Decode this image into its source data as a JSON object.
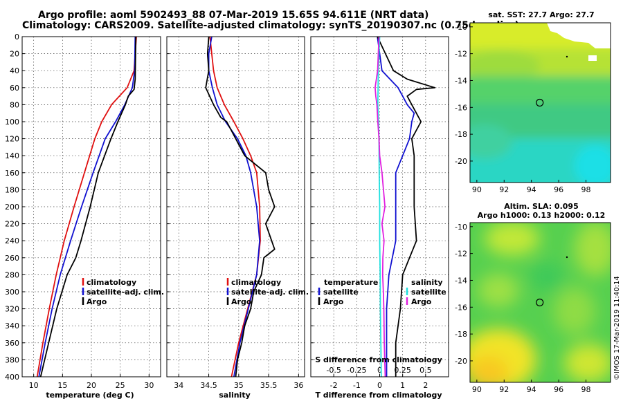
{
  "title": {
    "line1": "Argo profile: aoml 5902493_88 07-Mar-2019 15.65S 94.611E (NRT data)",
    "line2": "Climatology: CARS2009. Satellite-adjusted climatology: synTS_20190307.nc (0.75d earlier)"
  },
  "colors": {
    "climatology": "#e01010",
    "satellite": "#1010d0",
    "argo": "#000000",
    "satellite_salinity": "#20e0e0",
    "argo_salinity": "#e020e0"
  },
  "chart_data": [
    {
      "id": "temperature",
      "type": "line",
      "xlabel": "temperature (deg C)",
      "ylabel": "",
      "xlim": [
        8,
        32
      ],
      "ylim": [
        400,
        0
      ],
      "xticks": [
        10,
        15,
        20,
        25,
        30
      ],
      "yticks": [
        0,
        20,
        40,
        60,
        80,
        100,
        120,
        140,
        160,
        180,
        200,
        220,
        240,
        260,
        280,
        300,
        320,
        340,
        360,
        380,
        400
      ],
      "grid": true,
      "legend": [
        "climatology",
        "satellite-adj. clim.",
        "Argo"
      ],
      "legend_position": "lower-right",
      "series": [
        {
          "name": "climatology",
          "color": "#e01010",
          "depth": [
            0,
            40,
            60,
            80,
            100,
            120,
            160,
            200,
            240,
            280,
            320,
            360,
            400
          ],
          "values": [
            27.8,
            27.4,
            26.2,
            23.5,
            21.8,
            20.6,
            18.8,
            17.0,
            15.3,
            13.9,
            12.7,
            11.6,
            10.6
          ]
        },
        {
          "name": "satellite-adj. clim.",
          "color": "#1010d0",
          "depth": [
            0,
            40,
            60,
            80,
            100,
            120,
            160,
            200,
            240,
            280,
            320,
            360,
            400
          ],
          "values": [
            27.6,
            27.5,
            27.1,
            25.8,
            24.2,
            22.4,
            20.3,
            18.3,
            16.4,
            14.6,
            13.2,
            12.0,
            10.9
          ]
        },
        {
          "name": "Argo",
          "color": "#000000",
          "depth": [
            0,
            50,
            62,
            70,
            80,
            100,
            120,
            160,
            200,
            240,
            260,
            280,
            320,
            360,
            400
          ],
          "values": [
            27.7,
            27.6,
            27.4,
            26.4,
            25.9,
            24.6,
            23.4,
            21.2,
            19.8,
            18.2,
            17.3,
            15.8,
            14.0,
            12.6,
            11.2
          ]
        }
      ]
    },
    {
      "id": "salinity",
      "type": "line",
      "xlabel": "salinity",
      "xlim": [
        33.8,
        36.1
      ],
      "ylim": [
        400,
        0
      ],
      "xticks": [
        34,
        34.5,
        35,
        35.5,
        36
      ],
      "grid": true,
      "legend": [
        "climatology",
        "satellite-adj. clim.",
        "Argo"
      ],
      "legend_position": "lower-right",
      "series": [
        {
          "name": "climatology",
          "color": "#e01010",
          "depth": [
            0,
            20,
            40,
            60,
            80,
            100,
            120,
            140,
            160,
            200,
            240,
            280,
            320,
            360,
            400
          ],
          "values": [
            34.52,
            34.55,
            34.58,
            34.64,
            34.76,
            34.92,
            35.07,
            35.2,
            35.3,
            35.35,
            35.36,
            35.3,
            35.15,
            35.0,
            34.88
          ]
        },
        {
          "name": "satellite-adj. clim.",
          "color": "#1010d0",
          "depth": [
            0,
            20,
            40,
            60,
            80,
            100,
            120,
            140,
            160,
            200,
            240,
            280,
            320,
            360,
            400
          ],
          "values": [
            34.55,
            34.5,
            34.5,
            34.56,
            34.64,
            34.78,
            34.98,
            35.12,
            35.2,
            35.3,
            35.35,
            35.3,
            35.16,
            35.02,
            34.92
          ]
        },
        {
          "name": "Argo",
          "color": "#000000",
          "depth": [
            0,
            20,
            40,
            60,
            80,
            95,
            100,
            120,
            140,
            160,
            180,
            200,
            220,
            240,
            250,
            260,
            280,
            300,
            320,
            340,
            360,
            380,
            400
          ],
          "values": [
            34.5,
            34.48,
            34.5,
            34.45,
            34.58,
            34.7,
            34.8,
            34.95,
            35.1,
            35.45,
            35.5,
            35.6,
            35.45,
            35.55,
            35.6,
            35.42,
            35.38,
            35.25,
            35.2,
            35.1,
            35.05,
            34.98,
            34.95
          ]
        }
      ]
    },
    {
      "id": "difference",
      "type": "line",
      "xlabel": "T difference from climatology",
      "xlabel2": "S difference from climatology",
      "xlim": [
        -3,
        3
      ],
      "ylim": [
        400,
        0
      ],
      "xticks": [
        -2,
        -1,
        0,
        1,
        2
      ],
      "xticks2": [
        "-0.5",
        "-0.25",
        "0",
        "0.25",
        "0.5"
      ],
      "grid": true,
      "legend_temperature_title": "temperature",
      "legend_temperature": [
        "satellite",
        "Argo"
      ],
      "legend_salinity_title": "salinity",
      "legend_salinity": [
        "satellite",
        "Argo"
      ],
      "series": [
        {
          "name": "temperature satellite",
          "color": "#1010d0",
          "depth": [
            0,
            40,
            60,
            70,
            80,
            90,
            100,
            120,
            140,
            160,
            200,
            240,
            280,
            320,
            360,
            400
          ],
          "values": [
            -0.1,
            0.1,
            0.8,
            1.0,
            1.2,
            1.5,
            1.4,
            1.3,
            1.0,
            0.7,
            0.7,
            0.7,
            0.4,
            0.3,
            0.3,
            0.3
          ]
        },
        {
          "name": "temperature Argo",
          "color": "#000000",
          "depth": [
            0,
            40,
            50,
            60,
            62,
            70,
            80,
            100,
            120,
            140,
            160,
            200,
            240,
            260,
            280,
            320,
            360,
            400
          ],
          "values": [
            -0.1,
            0.6,
            1.2,
            2.4,
            1.6,
            1.2,
            1.4,
            1.8,
            1.4,
            1.5,
            1.5,
            1.5,
            1.6,
            1.3,
            1.0,
            0.9,
            0.7,
            0.7
          ]
        },
        {
          "name": "salinity satellite",
          "color": "#20e0e0",
          "depth": [
            0,
            40,
            60,
            80,
            100,
            120,
            160,
            200,
            240,
            280,
            320,
            360,
            400
          ],
          "values": [
            0.0,
            -0.06,
            -0.07,
            -0.08,
            -0.05,
            -0.03,
            -0.02,
            0.0,
            0.0,
            0.02,
            0.03,
            0.05,
            0.07
          ]
        },
        {
          "name": "salinity Argo",
          "color": "#e020e0",
          "depth": [
            0,
            40,
            60,
            70,
            80,
            100,
            120,
            140,
            160,
            200,
            220,
            240,
            260,
            280,
            300,
            320,
            360,
            400
          ],
          "values": [
            -0.03,
            -0.09,
            -0.2,
            -0.17,
            -0.12,
            -0.08,
            -0.03,
            0.0,
            0.1,
            0.23,
            0.1,
            0.19,
            0.14,
            0.13,
            0.16,
            0.18,
            0.2,
            0.24
          ]
        }
      ]
    },
    {
      "id": "sst_map",
      "type": "heatmap",
      "title": "sat. SST: 27.7 Argo: 27.7",
      "xticks": [
        90,
        92,
        94,
        96,
        98
      ],
      "yticks": [
        -10,
        -12,
        -14,
        -16,
        -18,
        -20
      ],
      "xlim": [
        89.5,
        99.8
      ],
      "ylim": [
        -21.6,
        -9.7
      ],
      "argo_position": {
        "lon": 94.611,
        "lat": -15.65
      }
    },
    {
      "id": "sla_map",
      "type": "heatmap",
      "title": "Altim. SLA: 0.095",
      "title2": "Argo h1000: 0.13 h2000: 0.12",
      "xticks": [
        90,
        92,
        94,
        96,
        98
      ],
      "yticks": [
        -10,
        -12,
        -14,
        -16,
        -18,
        -20
      ],
      "xlim": [
        89.5,
        99.8
      ],
      "ylim": [
        -21.6,
        -9.7
      ],
      "argo_position": {
        "lon": 94.611,
        "lat": -15.65
      }
    }
  ],
  "credit": "©IMOS 17-Mar-2019 11:40:14"
}
